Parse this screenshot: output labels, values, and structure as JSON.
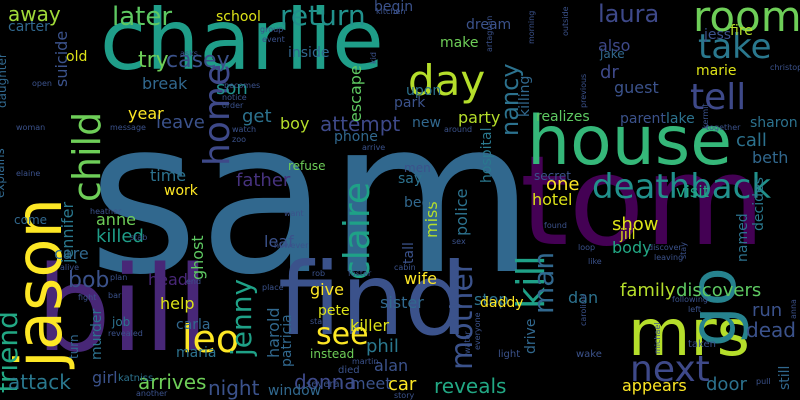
{
  "wordcloud": {
    "background": "#000000",
    "words": [
      {
        "text": "sam",
        "color": "#31688e"
      },
      {
        "text": "charlie",
        "color": "#1f9e89"
      },
      {
        "text": "tom",
        "color": "#440154"
      },
      {
        "text": "find",
        "color": "#3b528b"
      },
      {
        "text": "bill",
        "color": "#482777"
      },
      {
        "text": "house",
        "color": "#35b779"
      },
      {
        "text": "jason",
        "color": "#fde725"
      },
      {
        "text": "mrs",
        "color": "#b5de2b"
      },
      {
        "text": "go",
        "color": "#26828e"
      },
      {
        "text": "tell",
        "color": "#3e4989"
      },
      {
        "text": "room",
        "color": "#6ece58"
      },
      {
        "text": "take",
        "color": "#2a788e"
      },
      {
        "text": "day",
        "color": "#b5de2b"
      },
      {
        "text": "deathback",
        "color": "#21918c"
      },
      {
        "text": "next",
        "color": "#3e4989"
      },
      {
        "text": "kill",
        "color": "#1fa187"
      },
      {
        "text": "child",
        "color": "#6ece58"
      },
      {
        "text": "home",
        "color": "#3e4989"
      },
      {
        "text": "claire",
        "color": "#1fa187"
      },
      {
        "text": "leo",
        "color": "#fde725"
      },
      {
        "text": "friend",
        "color": "#22a884"
      },
      {
        "text": "see",
        "color": "#fde725"
      },
      {
        "text": "mother",
        "color": "#3b528b"
      },
      {
        "text": "later",
        "color": "#5ec962"
      },
      {
        "text": "return",
        "color": "#21918c"
      },
      {
        "text": "laura",
        "color": "#3e4989"
      },
      {
        "text": "nancy",
        "color": "#2c728e"
      },
      {
        "text": "man",
        "color": "#31688e"
      },
      {
        "text": "jenny",
        "color": "#1fa187"
      },
      {
        "text": "bob",
        "color": "#3b528b"
      },
      {
        "text": "attempt",
        "color": "#3e4989"
      },
      {
        "text": "family",
        "color": "#b5de2b"
      },
      {
        "text": "discovers",
        "color": "#5ec962"
      },
      {
        "text": "dead",
        "color": "#3b528b"
      },
      {
        "text": "reveals",
        "color": "#22a884"
      },
      {
        "text": "attack",
        "color": "#2a788e"
      },
      {
        "text": "arrives",
        "color": "#6ece58"
      },
      {
        "text": "night",
        "color": "#3b528b"
      },
      {
        "text": "donna",
        "color": "#3e4989"
      },
      {
        "text": "casey",
        "color": "#3b528b"
      },
      {
        "text": "away",
        "color": "#a0da39"
      },
      {
        "text": "try",
        "color": "#6ece58"
      },
      {
        "text": "break",
        "color": "#31688e"
      },
      {
        "text": "son",
        "color": "#21918c"
      },
      {
        "text": "party",
        "color": "#b5de2b"
      },
      {
        "text": "phil",
        "color": "#2a788e"
      },
      {
        "text": "father",
        "color": "#46327e"
      },
      {
        "text": "ghost",
        "color": "#5ec962"
      },
      {
        "text": "harold",
        "color": "#31688e"
      },
      {
        "text": "patricia",
        "color": "#31688e"
      },
      {
        "text": "killed",
        "color": "#1f9e89"
      },
      {
        "text": "head",
        "color": "#482777"
      },
      {
        "text": "help",
        "color": "#dde318"
      },
      {
        "text": "carla",
        "color": "#31688e"
      },
      {
        "text": "maria",
        "color": "#2c728e"
      },
      {
        "text": "meet",
        "color": "#3b528b"
      },
      {
        "text": "car",
        "color": "#fde725"
      },
      {
        "text": "alan",
        "color": "#3b528b"
      },
      {
        "text": "one",
        "color": "#fde725"
      },
      {
        "text": "hotel",
        "color": "#dde318"
      },
      {
        "text": "show",
        "color": "#dde318"
      },
      {
        "text": "body",
        "color": "#22a884"
      },
      {
        "text": "jill",
        "color": "#dde318"
      },
      {
        "text": "visit",
        "color": "#22a884"
      },
      {
        "text": "guest",
        "color": "#3b528b"
      },
      {
        "text": "dr",
        "color": "#3e4989"
      },
      {
        "text": "marie",
        "color": "#dde318"
      },
      {
        "text": "call",
        "color": "#2c728e"
      },
      {
        "text": "beth",
        "color": "#31688e"
      },
      {
        "text": "decides",
        "color": "#2a788e"
      },
      {
        "text": "run",
        "color": "#3b528b"
      },
      {
        "text": "door",
        "color": "#2c728e"
      },
      {
        "text": "appears",
        "color": "#fde725"
      },
      {
        "text": "still",
        "color": "#31688e"
      },
      {
        "text": "leave",
        "color": "#3b528b"
      },
      {
        "text": "get",
        "color": "#2c728e"
      },
      {
        "text": "boy",
        "color": "#b5de2b"
      },
      {
        "text": "year",
        "color": "#fde725"
      },
      {
        "text": "time",
        "color": "#2c728e"
      },
      {
        "text": "work",
        "color": "#fde725"
      },
      {
        "text": "jennifer",
        "color": "#2a788e"
      },
      {
        "text": "anne",
        "color": "#6ece58"
      },
      {
        "text": "care",
        "color": "#31688e"
      },
      {
        "text": "leaf",
        "color": "#3b528b"
      },
      {
        "text": "give",
        "color": "#fde725"
      },
      {
        "text": "pete",
        "color": "#dde318"
      },
      {
        "text": "killer",
        "color": "#dde318"
      },
      {
        "text": "sister",
        "color": "#31688e"
      },
      {
        "text": "wife",
        "color": "#fde725"
      },
      {
        "text": "stop",
        "color": "#2c728e"
      },
      {
        "text": "dan",
        "color": "#2c728e"
      },
      {
        "text": "police",
        "color": "#2c728e"
      },
      {
        "text": "miss",
        "color": "#b5de2b"
      },
      {
        "text": "tall",
        "color": "#3b528b"
      },
      {
        "text": "bed",
        "color": "#31688e"
      },
      {
        "text": "say",
        "color": "#2c728e"
      },
      {
        "text": "murder",
        "color": "#2c728e"
      },
      {
        "text": "girl",
        "color": "#3b528b"
      },
      {
        "text": "window",
        "color": "#31688e"
      },
      {
        "text": "school",
        "color": "#dde318"
      },
      {
        "text": "inside",
        "color": "#31688e"
      },
      {
        "text": "escape",
        "color": "#5ec962"
      },
      {
        "text": "make",
        "color": "#6ece58"
      },
      {
        "text": "upon",
        "color": "#2c728e"
      },
      {
        "text": "park",
        "color": "#3b528b"
      },
      {
        "text": "begin",
        "color": "#3b528b"
      },
      {
        "text": "dream",
        "color": "#3b528b"
      },
      {
        "text": "killing",
        "color": "#31688e"
      },
      {
        "text": "also",
        "color": "#3e4989"
      },
      {
        "text": "jake",
        "color": "#31688e"
      },
      {
        "text": "jess",
        "color": "#3b528b"
      },
      {
        "text": "fire",
        "color": "#b5de2b"
      },
      {
        "text": "lake",
        "color": "#2c728e"
      },
      {
        "text": "parent",
        "color": "#3b528b"
      },
      {
        "text": "sharon",
        "color": "#2c728e"
      },
      {
        "text": "realizes",
        "color": "#5ec962"
      },
      {
        "text": "hospital",
        "color": "#2a788e"
      },
      {
        "text": "suicide",
        "color": "#3b528b"
      },
      {
        "text": "daddy",
        "color": "#fde725"
      },
      {
        "text": "drive",
        "color": "#31688e"
      },
      {
        "text": "phone",
        "color": "#31688e"
      },
      {
        "text": "carter",
        "color": "#31688e"
      },
      {
        "text": "old",
        "color": "#dde318"
      },
      {
        "text": "daughter",
        "color": "#31688e"
      },
      {
        "text": "explains",
        "color": "#31688e"
      },
      {
        "text": "come",
        "color": "#31688e"
      },
      {
        "text": "new",
        "color": "#31688e"
      },
      {
        "text": "men",
        "color": "#3b528b"
      },
      {
        "text": "turn",
        "color": "#31688e"
      },
      {
        "text": "job",
        "color": "#2c728e"
      },
      {
        "text": "refuse",
        "color": "#6ece58"
      },
      {
        "text": "secret",
        "color": "#3b528b"
      },
      {
        "text": "named",
        "color": "#2c728e"
      },
      {
        "text": "instead",
        "color": "#6ece58"
      },
      {
        "text": "died",
        "color": "#3b528b"
      },
      {
        "text": "several",
        "color": "#3b528b"
      },
      {
        "text": "katniss",
        "color": "#2c728e"
      },
      {
        "text": "another",
        "color": "#3b528b"
      },
      {
        "text": "light",
        "color": "#3b528b"
      },
      {
        "text": "wake",
        "color": "#3b528b"
      },
      {
        "text": "taken",
        "color": "#3b528b"
      },
      {
        "text": "pull",
        "color": "#3b528b"
      },
      {
        "text": "around",
        "color": "#3b528b"
      },
      {
        "text": "message",
        "color": "#3b528b"
      },
      {
        "text": "together",
        "color": "#3b528b"
      },
      {
        "text": "christopher",
        "color": "#3b528b"
      },
      {
        "text": "kermit",
        "color": "#3b528b"
      },
      {
        "text": "previous",
        "color": "#3b528b"
      },
      {
        "text": "asks",
        "color": "#3b528b"
      },
      {
        "text": "open",
        "color": "#3b528b"
      },
      {
        "text": "becomes",
        "color": "#3b528b"
      },
      {
        "text": "notice",
        "color": "#3b528b"
      },
      {
        "text": "order",
        "color": "#3b528b"
      },
      {
        "text": "watch",
        "color": "#3b528b"
      },
      {
        "text": "group",
        "color": "#3b528b"
      },
      {
        "text": "event",
        "color": "#3b528b"
      },
      {
        "text": "kid",
        "color": "#3b528b"
      },
      {
        "text": "artagnan",
        "color": "#3b528b"
      },
      {
        "text": "morning",
        "color": "#3b528b"
      },
      {
        "text": "outside",
        "color": "#3b528b"
      },
      {
        "text": "woman",
        "color": "#3b528b"
      },
      {
        "text": "elaine",
        "color": "#3b528b"
      },
      {
        "text": "heather",
        "color": "#3b528b"
      },
      {
        "text": "stab",
        "color": "#3b528b"
      },
      {
        "text": "alive",
        "color": "#3b528b"
      },
      {
        "text": "plan",
        "color": "#3b528b"
      },
      {
        "text": "fight",
        "color": "#3b528b"
      },
      {
        "text": "bar",
        "color": "#3b528b"
      },
      {
        "text": "revealed",
        "color": "#3b528b"
      },
      {
        "text": "end",
        "color": "#3b528b"
      },
      {
        "text": "want",
        "color": "#3b528b"
      },
      {
        "text": "however",
        "color": "#3b528b"
      },
      {
        "text": "place",
        "color": "#3b528b"
      },
      {
        "text": "rob",
        "color": "#3b528b"
      },
      {
        "text": "foster",
        "color": "#3b528b"
      },
      {
        "text": "cabin",
        "color": "#3b528b"
      },
      {
        "text": "martin",
        "color": "#3b528b"
      },
      {
        "text": "story",
        "color": "#3b528b"
      },
      {
        "text": "start",
        "color": "#3b528b"
      },
      {
        "text": "arrive",
        "color": "#3b528b"
      },
      {
        "text": "zoo",
        "color": "#3b528b"
      },
      {
        "text": "sex",
        "color": "#3b528b"
      },
      {
        "text": "found",
        "color": "#3b528b"
      },
      {
        "text": "loop",
        "color": "#3b528b"
      },
      {
        "text": "like",
        "color": "#3b528b"
      },
      {
        "text": "discover",
        "color": "#3b528b"
      },
      {
        "text": "leaving",
        "color": "#3b528b"
      },
      {
        "text": "stay",
        "color": "#3b528b"
      },
      {
        "text": "following",
        "color": "#3b528b"
      },
      {
        "text": "left",
        "color": "#3b528b"
      },
      {
        "text": "michael",
        "color": "#3b528b"
      },
      {
        "text": "caroline",
        "color": "#3b528b"
      },
      {
        "text": "everyone",
        "color": "#3b528b"
      },
      {
        "text": "water",
        "color": "#3b528b"
      },
      {
        "text": "anna",
        "color": "#3b528b"
      },
      {
        "text": "kitchen",
        "color": "#3b528b"
      },
      {
        "text": "ki",
        "color": "#3b528b"
      }
    ]
  }
}
